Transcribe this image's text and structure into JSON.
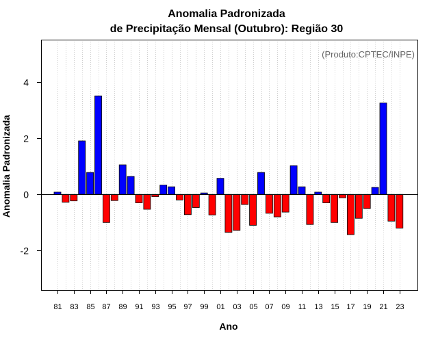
{
  "chart_data": {
    "type": "bar",
    "title_line1": "Anomalia Padronizada",
    "title_line2": "de Precipitação Mensal (Outubro): Região 30",
    "annotation": "(Produto:CPTEC/INPE)",
    "xlabel": "Ano",
    "ylabel": "Anomalia Padronizada",
    "ylim": [
      -3.4,
      5.5
    ],
    "yticks": [
      -2,
      0,
      2,
      4
    ],
    "ytick_labels": [
      "-2",
      "0",
      "2",
      "4"
    ],
    "categories": [
      "81",
      "82",
      "83",
      "84",
      "85",
      "86",
      "87",
      "88",
      "89",
      "90",
      "91",
      "92",
      "93",
      "94",
      "95",
      "96",
      "97",
      "98",
      "99",
      "00",
      "01",
      "02",
      "03",
      "04",
      "05",
      "06",
      "07",
      "08",
      "09",
      "10",
      "11",
      "12",
      "13",
      "14",
      "15",
      "16",
      "17",
      "18",
      "19",
      "20",
      "21",
      "22",
      "23"
    ],
    "xtick_labels": [
      "81",
      "83",
      "85",
      "87",
      "89",
      "91",
      "93",
      "95",
      "97",
      "99",
      "01",
      "03",
      "05",
      "07",
      "09",
      "11",
      "13",
      "15",
      "17",
      "19",
      "21",
      "23"
    ],
    "values": [
      0.08,
      -0.28,
      -0.23,
      1.9,
      0.78,
      3.5,
      -1.0,
      -0.22,
      1.05,
      0.64,
      -0.3,
      -0.53,
      -0.08,
      0.33,
      0.27,
      -0.2,
      -0.72,
      -0.47,
      0.05,
      -0.73,
      0.57,
      -1.35,
      -1.28,
      -0.36,
      -1.1,
      0.78,
      -0.67,
      -0.8,
      -0.63,
      1.02,
      0.27,
      -1.07,
      0.08,
      -0.3,
      -1.0,
      -0.12,
      -1.43,
      -0.85,
      -0.5,
      0.25,
      3.25,
      -0.95,
      -1.2
    ],
    "positive_color": "#0000ff",
    "negative_color": "#ff0000",
    "grid": "vertical-dotted"
  }
}
